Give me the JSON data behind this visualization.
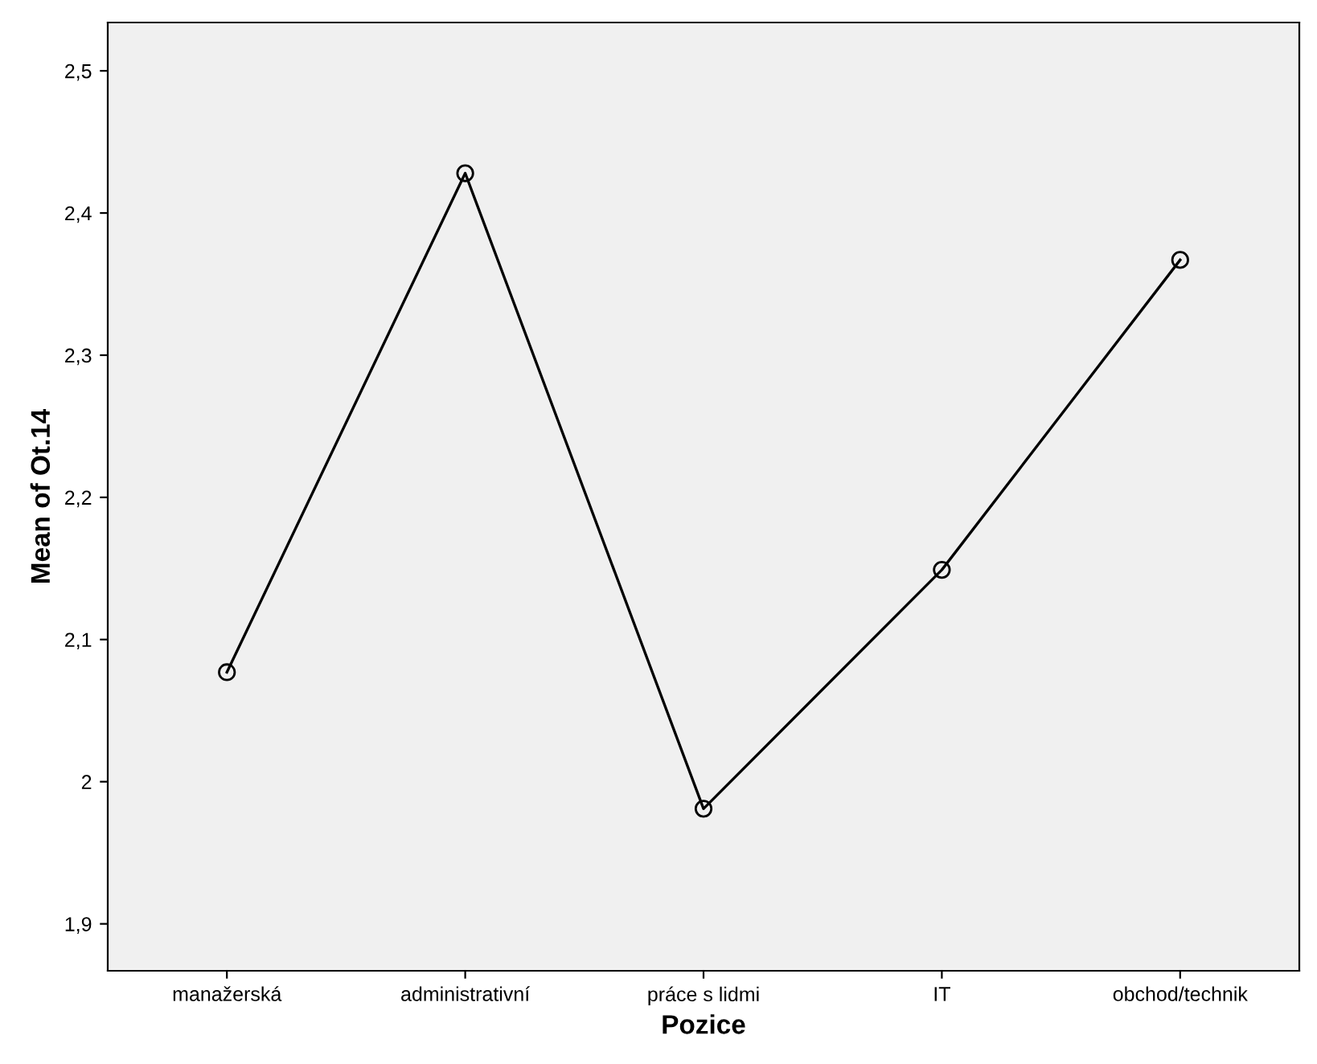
{
  "chart_data": {
    "type": "line",
    "xlabel": "Pozice",
    "ylabel": "Mean of Ot.14",
    "categories": [
      "manažerská",
      "administrativní",
      "práce s lidmi",
      "IT",
      "obchod/technik"
    ],
    "series": [
      {
        "color": "#000000",
        "values": [
          2.077,
          2.428,
          1.981,
          2.149,
          2.367
        ]
      }
    ],
    "ylim": [
      1.867,
      2.534
    ],
    "yticks": [
      {
        "value": 1.9,
        "label": "1,9"
      },
      2,
      {
        "value": 2.1,
        "label": "2,1"
      },
      {
        "value": 2.2,
        "label": "2,2"
      },
      {
        "value": 2.3,
        "label": "2,3"
      },
      {
        "value": 2.4,
        "label": "2,4"
      },
      {
        "value": 2.5,
        "label": "2,5"
      }
    ],
    "marker": "circle",
    "line_style": "solid",
    "grid": false
  }
}
